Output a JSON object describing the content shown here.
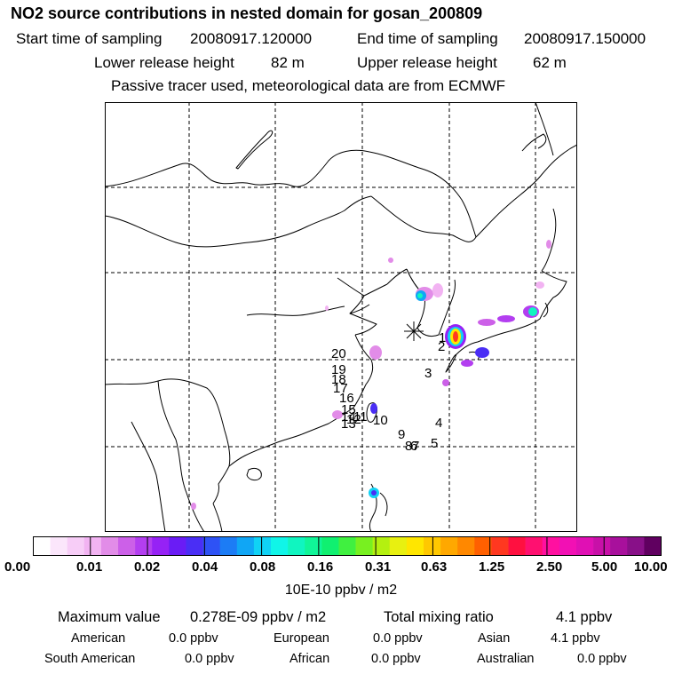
{
  "header": {
    "title": "NO2 source contributions in nested domain for gosan_200809",
    "start_label": "Start time of sampling",
    "start_value": "20080917.120000",
    "end_label": "End time of sampling",
    "end_value": "20080917.150000",
    "lower_label": "Lower release height",
    "lower_value": "82 m",
    "upper_label": "Upper release height",
    "upper_value": "62 m",
    "note": "Passive tracer used, meteorological data are from ECMWF"
  },
  "map": {
    "release_marker": "gosan-release-site",
    "trajectory_labels": [
      "20",
      "19",
      "18",
      "17",
      "16",
      "15",
      "14",
      "13",
      "12",
      "11",
      "10",
      "9",
      "8",
      "7",
      "6",
      "5",
      "4",
      "3",
      "2",
      "1"
    ]
  },
  "colorbar": {
    "ticks": [
      "0.00",
      "0.01",
      "0.02",
      "0.04",
      "0.08",
      "0.16",
      "0.31",
      "0.63",
      "1.25",
      "2.50",
      "5.00",
      "10.00"
    ],
    "colors": [
      "#ffffff",
      "#fbe6fb",
      "#f7cdf7",
      "#f2b3f2",
      "#e28ce8",
      "#cc60e8",
      "#b33ef0",
      "#9622f5",
      "#6a1cf5",
      "#4a2ef5",
      "#2e52f5",
      "#1c7cf5",
      "#10a6f5",
      "#10d2f5",
      "#10f5e8",
      "#10f5c0",
      "#10f598",
      "#10f070",
      "#40f040",
      "#78f020",
      "#b4f010",
      "#e8f010",
      "#ffe600",
      "#ffc800",
      "#ffa800",
      "#ff8800",
      "#ff6000",
      "#ff3820",
      "#ff1040",
      "#ff1070",
      "#ff10a0",
      "#f210b4",
      "#e010b4",
      "#c810a8",
      "#a8109c",
      "#881088",
      "#600060"
    ],
    "units": "10E-10 ppbv / m2"
  },
  "stats": {
    "max_label": "Maximum value",
    "max_value": "0.278E-09 ppbv / m2",
    "total_label": "Total mixing ratio",
    "total_value": "4.1 ppbv",
    "regions": [
      {
        "name": "American",
        "value": "0.0 ppbv"
      },
      {
        "name": "European",
        "value": "0.0 ppbv"
      },
      {
        "name": "Asian",
        "value": "4.1 ppbv"
      },
      {
        "name": "South American",
        "value": "0.0 ppbv"
      },
      {
        "name": "African",
        "value": "0.0 ppbv"
      },
      {
        "name": "Australian",
        "value": "0.0 ppbv"
      }
    ]
  }
}
